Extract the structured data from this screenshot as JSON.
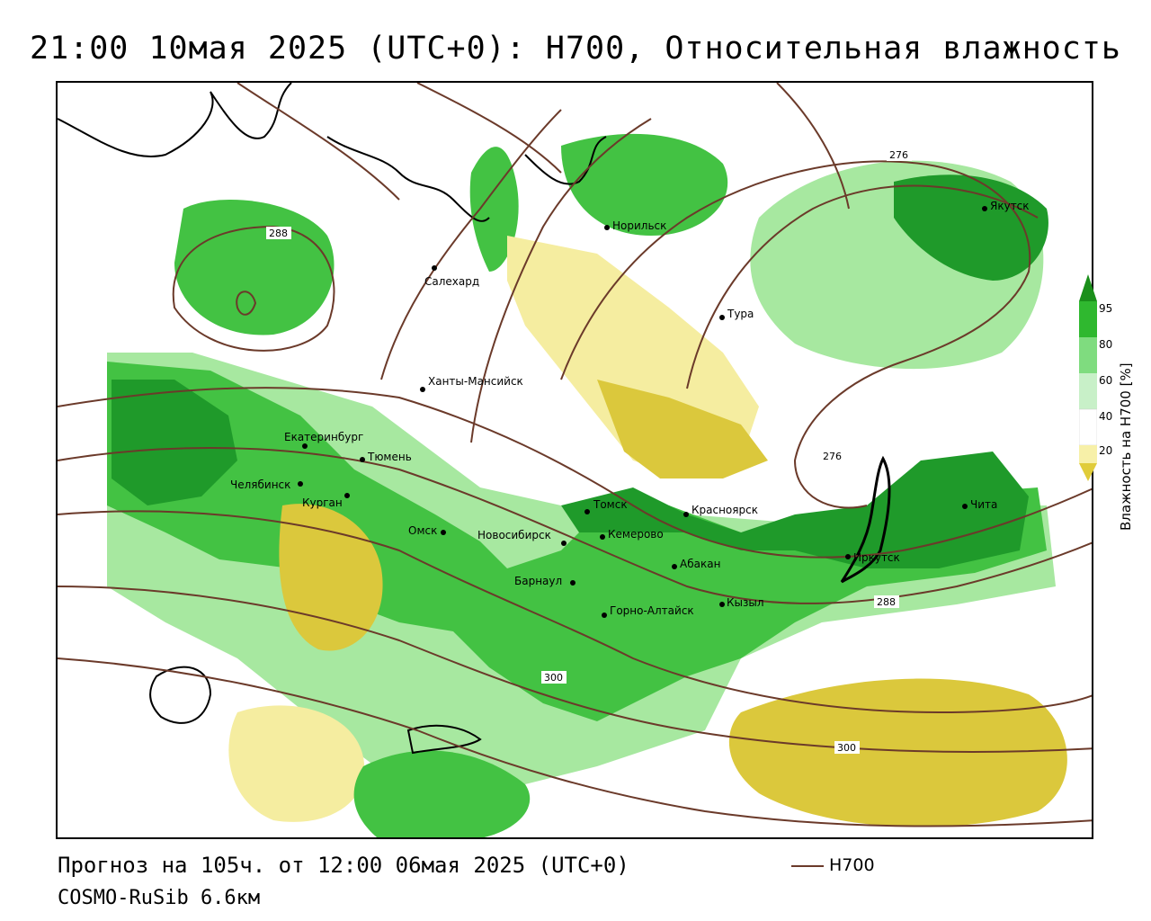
{
  "header": {
    "title": "21:00 10мая 2025 (UTC+0): H700, Относительная влажность"
  },
  "footer": {
    "forecast": "Прогноз на 105ч. от 12:00 06мая 2025 (UTC+0)",
    "model": "COSMO-RuSib 6.6км",
    "line_legend": "H700"
  },
  "colorbar": {
    "title": "Влажность на H700 [%]",
    "ticks": [
      "95",
      "80",
      "60",
      "40",
      "20"
    ],
    "colors": [
      "#1a8f1a",
      "#2fb82f",
      "#7fdc7f",
      "#c8f0c8",
      "#ffffff",
      "#f7f0a8",
      "#e0cc3a"
    ]
  },
  "colors": {
    "contour": "#6b3a2a",
    "dark_green": "#1f9a2a",
    "green": "#43c243",
    "light_green": "#a7e8a0",
    "light_yellow": "#f5eda0",
    "yellow": "#dbc83c"
  },
  "contour_labels": [
    "288",
    "276",
    "276",
    "288",
    "300",
    "300"
  ],
  "cities": [
    "Якутск",
    "Норильск",
    "Салехард",
    "Тура",
    "Ханты-Мансийск",
    "Екатеринбург",
    "Тюмень",
    "Челябинск",
    "Курган",
    "Омск",
    "Новосибирск",
    "Томск",
    "Кемерово",
    "Красноярск",
    "Абакан",
    "Барнаул",
    "Горно-Алтайск",
    "Кызыл",
    "Иркутск",
    "Чита"
  ]
}
